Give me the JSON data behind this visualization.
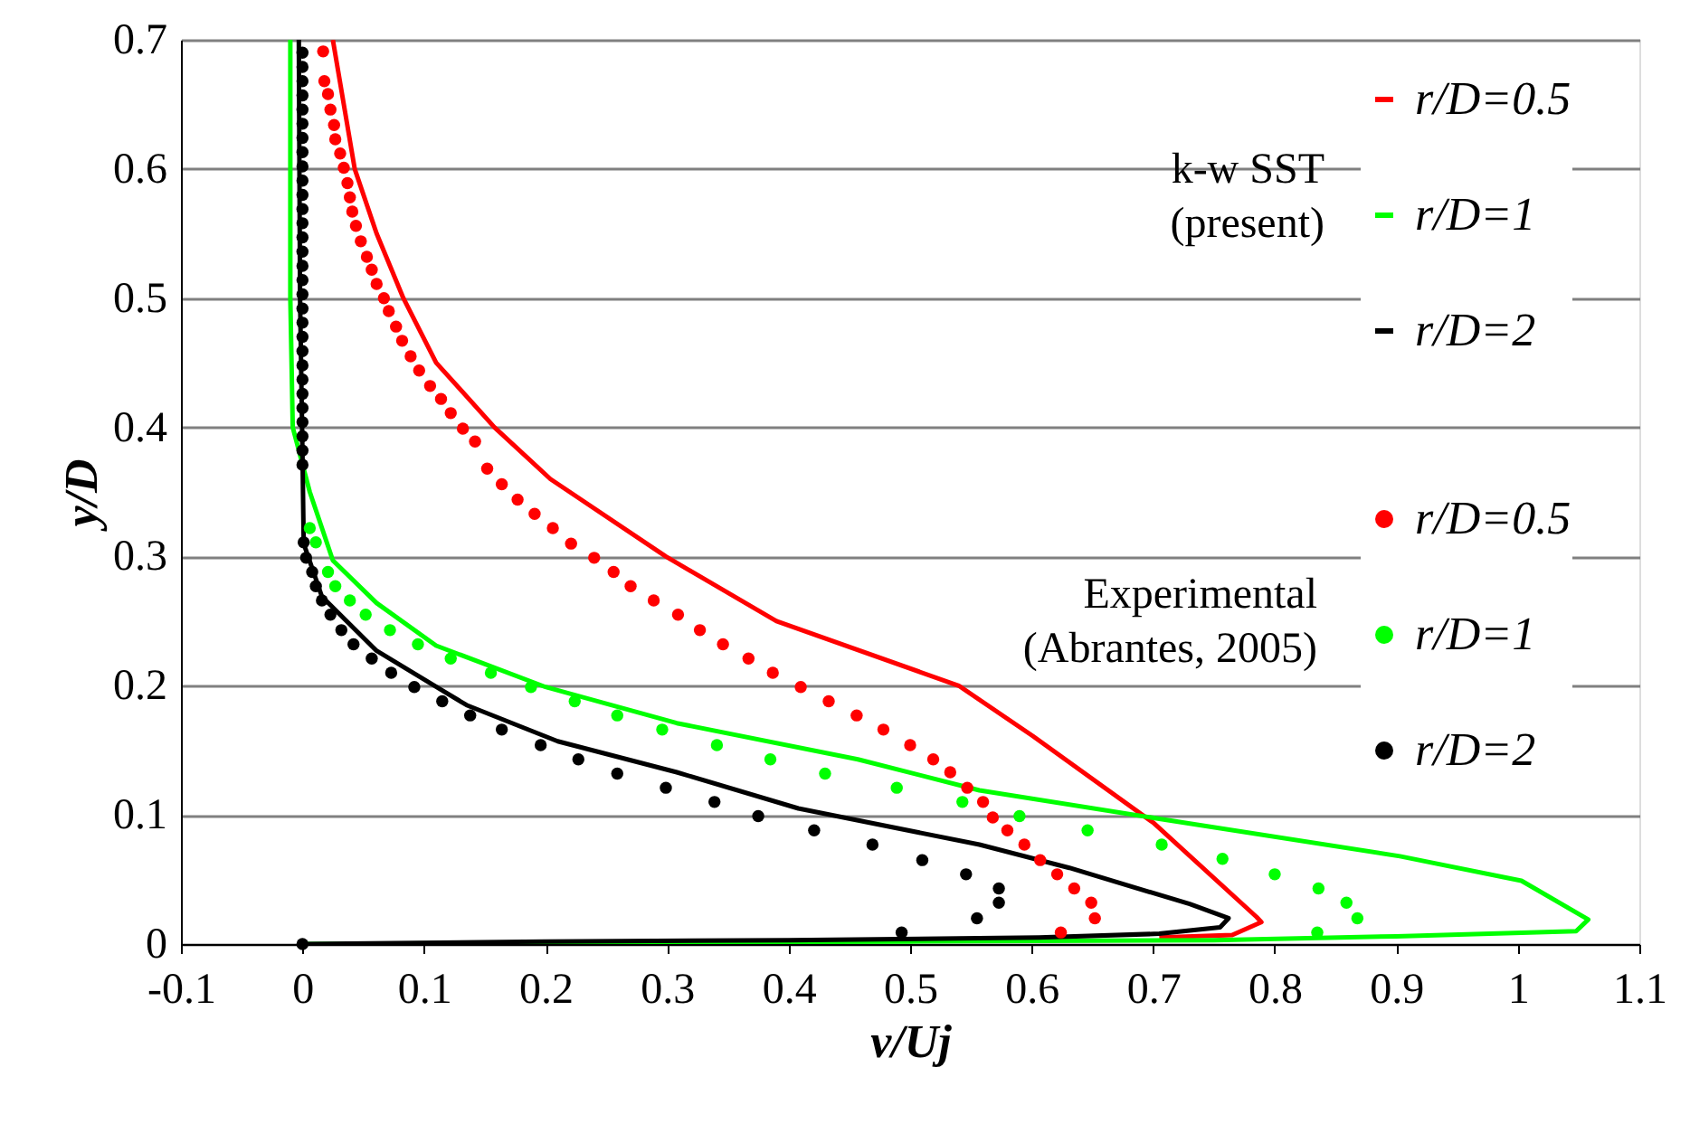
{
  "chart_data": {
    "type": "line",
    "xlabel": "v/Uj",
    "ylabel": "y/D",
    "xlim": [
      -0.1,
      1.1
    ],
    "xticks": [
      -0.1,
      0,
      0.1,
      0.2,
      0.3,
      0.4,
      0.5,
      0.6,
      0.7,
      0.8,
      0.9,
      1,
      1.1
    ],
    "ylim": [
      0,
      0.7
    ],
    "yticks": [
      0,
      0.1,
      0.2,
      0.3,
      0.4,
      0.5,
      0.6,
      0.7
    ],
    "grid": "y",
    "legend": "top right",
    "annotations": [
      "k-w SST\n(present)",
      "Experimental\n(Abrantes, 2005)"
    ],
    "series": [
      {
        "name": "r/D=0.5",
        "color": "#ff0000",
        "x": [
          0.025,
          0.043,
          0.061,
          0.083,
          0.11,
          0.158,
          0.204,
          0.299,
          0.39,
          0.54,
          0.601,
          0.7,
          0.785,
          0.789,
          0.765,
          0.705
        ],
        "values": [
          0.7,
          0.6,
          0.55,
          0.5,
          0.45,
          0.4,
          0.36,
          0.3,
          0.25,
          0.2,
          0.161,
          0.094,
          0.021,
          0.017,
          0.007,
          0.005
        ]
      },
      {
        "name": "r/D=1",
        "color": "#00ff00",
        "x": [
          -0.01,
          -0.01,
          -0.008,
          0.006,
          0.025,
          0.061,
          0.11,
          0.2,
          0.308,
          0.457,
          0.557,
          0.705,
          0.903,
          1.003,
          1.058,
          1.048,
          0.9,
          0.75,
          0.5,
          0.25,
          0.0
        ],
        "values": [
          0.7,
          0.5,
          0.4,
          0.35,
          0.297,
          0.264,
          0.231,
          0.199,
          0.171,
          0.143,
          0.119,
          0.097,
          0.068,
          0.049,
          0.019,
          0.01,
          0.006,
          0.003,
          0.002,
          0.001,
          0.0
        ]
      },
      {
        "name": "r/D=2",
        "color": "#000000",
        "x": [
          -0.003,
          -0.002,
          0.0,
          0.001,
          0.016,
          0.061,
          0.135,
          0.21,
          0.308,
          0.408,
          0.557,
          0.631,
          0.73,
          0.762,
          0.755,
          0.705,
          0.606,
          0.4,
          0.2,
          0.0
        ],
        "values": [
          0.7,
          0.5,
          0.38,
          0.31,
          0.269,
          0.227,
          0.185,
          0.157,
          0.133,
          0.105,
          0.077,
          0.059,
          0.031,
          0.02,
          0.013,
          0.008,
          0.005,
          0.003,
          0.002,
          0.0
        ]
      },
      {
        "name": "r/D=0.5",
        "type": "scatter",
        "color": "#ff0000",
        "x": [
          0.017,
          0.018,
          0.021,
          0.023,
          0.026,
          0.027,
          0.031,
          0.034,
          0.037,
          0.039,
          0.041,
          0.044,
          0.048,
          0.053,
          0.057,
          0.061,
          0.067,
          0.071,
          0.077,
          0.082,
          0.089,
          0.096,
          0.105,
          0.114,
          0.122,
          0.132,
          0.142,
          0.152,
          0.164,
          0.177,
          0.191,
          0.206,
          0.221,
          0.24,
          0.256,
          0.27,
          0.289,
          0.309,
          0.327,
          0.346,
          0.367,
          0.387,
          0.41,
          0.433,
          0.456,
          0.478,
          0.5,
          0.519,
          0.533,
          0.547,
          0.56,
          0.568,
          0.58,
          0.594,
          0.607,
          0.621,
          0.635,
          0.649,
          0.652,
          0.624
        ],
        "values": [
          0.691,
          0.668,
          0.658,
          0.646,
          0.634,
          0.623,
          0.612,
          0.601,
          0.589,
          0.578,
          0.567,
          0.556,
          0.544,
          0.532,
          0.522,
          0.511,
          0.5,
          0.49,
          0.478,
          0.467,
          0.455,
          0.444,
          0.432,
          0.422,
          0.411,
          0.399,
          0.389,
          0.368,
          0.356,
          0.344,
          0.333,
          0.322,
          0.31,
          0.299,
          0.288,
          0.277,
          0.266,
          0.255,
          0.243,
          0.232,
          0.221,
          0.21,
          0.199,
          0.188,
          0.177,
          0.166,
          0.154,
          0.143,
          0.133,
          0.121,
          0.11,
          0.098,
          0.088,
          0.077,
          0.065,
          0.054,
          0.043,
          0.032,
          0.02,
          0.009
        ]
      },
      {
        "name": "r/D=1",
        "type": "scatter",
        "color": "#00ff00",
        "x": [
          0.006,
          0.011,
          0.021,
          0.027,
          0.039,
          0.052,
          0.072,
          0.095,
          0.122,
          0.155,
          0.188,
          0.224,
          0.259,
          0.296,
          0.341,
          0.385,
          0.43,
          0.489,
          0.543,
          0.59,
          0.646,
          0.707,
          0.757,
          0.8,
          0.836,
          0.859,
          0.868,
          0.835
        ],
        "values": [
          0.322,
          0.311,
          0.288,
          0.277,
          0.266,
          0.255,
          0.243,
          0.232,
          0.221,
          0.21,
          0.199,
          0.188,
          0.177,
          0.166,
          0.154,
          0.143,
          0.132,
          0.121,
          0.11,
          0.099,
          0.088,
          0.077,
          0.066,
          0.054,
          0.043,
          0.032,
          0.02,
          0.009
        ]
      },
      {
        "name": "r/D=2",
        "type": "scatter",
        "color": "#000000",
        "x": [
          0.0,
          0.0,
          0.0,
          0.0,
          0.0,
          0.0,
          0.0,
          0.0,
          0.0,
          0.0,
          0.0,
          0.0,
          0.0,
          0.0,
          0.0,
          0.0,
          0.0,
          0.0,
          0.0,
          0.0,
          0.0,
          0.0,
          0.0,
          0.0,
          0.0,
          0.0,
          0.0,
          0.0,
          0.0,
          0.0,
          0.001,
          0.003,
          0.008,
          0.011,
          0.016,
          0.023,
          0.032,
          0.042,
          0.057,
          0.073,
          0.092,
          0.115,
          0.138,
          0.164,
          0.196,
          0.227,
          0.259,
          0.299,
          0.339,
          0.375,
          0.421,
          0.469,
          0.51,
          0.546,
          0.573,
          0.573,
          0.555,
          0.493,
          0.0
        ],
        "values": [
          0.69,
          0.679,
          0.668,
          0.657,
          0.646,
          0.635,
          0.624,
          0.613,
          0.602,
          0.591,
          0.58,
          0.569,
          0.558,
          0.547,
          0.536,
          0.525,
          0.514,
          0.503,
          0.492,
          0.481,
          0.47,
          0.459,
          0.448,
          0.437,
          0.426,
          0.415,
          0.404,
          0.393,
          0.382,
          0.371,
          0.311,
          0.299,
          0.288,
          0.277,
          0.266,
          0.255,
          0.243,
          0.232,
          0.221,
          0.21,
          0.199,
          0.188,
          0.177,
          0.166,
          0.154,
          0.143,
          0.132,
          0.121,
          0.11,
          0.099,
          0.088,
          0.077,
          0.065,
          0.054,
          0.043,
          0.032,
          0.02,
          0.009,
          0.0
        ]
      }
    ]
  }
}
